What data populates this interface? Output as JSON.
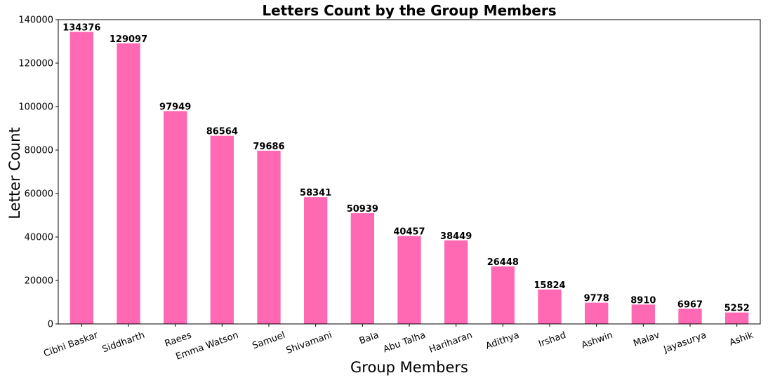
{
  "chart_data": {
    "type": "bar",
    "title": "Letters Count by the Group Members",
    "xlabel": "Group Members",
    "ylabel": "Letter Count",
    "categories": [
      "Cibhi Baskar",
      "Siddharth",
      "Raees",
      "Emma Watson",
      "Samuel",
      "Shivamani",
      "Bala",
      "Abu Talha",
      "Hariharan",
      "Adithya",
      "Irshad",
      "Ashwin",
      "Malav",
      "Jayasurya",
      "Ashik"
    ],
    "values": [
      134376,
      129097,
      97949,
      86564,
      79686,
      58341,
      50939,
      40457,
      38449,
      26448,
      15824,
      9778,
      8910,
      6967,
      5252
    ],
    "value_labels": [
      "134376",
      "129097",
      "97949",
      "86564",
      "79686",
      "58341",
      "50939",
      "40457",
      "38449",
      "26448",
      "15824",
      "9778",
      "8910",
      "6967",
      "5252"
    ],
    "ylim": [
      0,
      140000
    ],
    "yticks": [
      0,
      20000,
      40000,
      60000,
      80000,
      100000,
      120000,
      140000
    ],
    "ytick_labels": [
      "0",
      "20000",
      "40000",
      "60000",
      "80000",
      "100000",
      "120000",
      "140000"
    ],
    "grid": false,
    "bar_color": "#ff69b4"
  }
}
